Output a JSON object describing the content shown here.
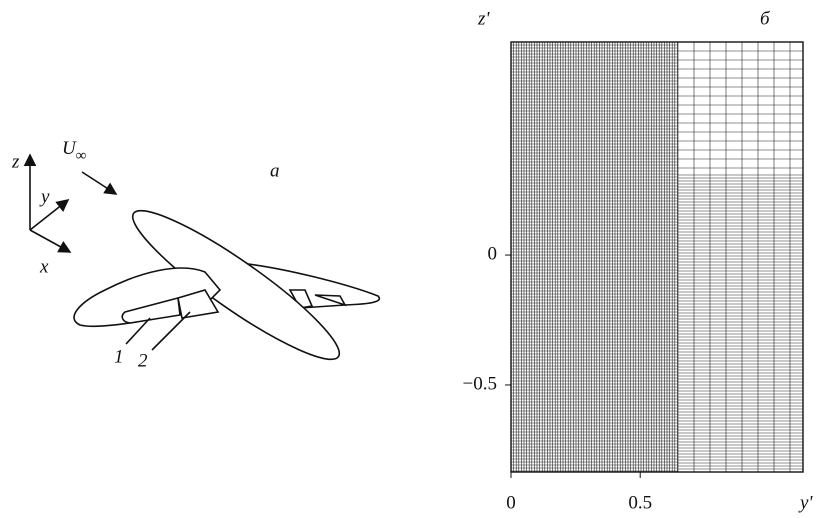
{
  "panel_a": {
    "label": "a",
    "axis_z": "z",
    "axis_y": "y",
    "axis_x": "x",
    "velocity_label": "U",
    "velocity_subscript": "∞",
    "part_1": "1",
    "part_2": "2"
  },
  "chart_data": {
    "type": "mesh",
    "panel_label": "б",
    "xlabel": "y'",
    "ylabel": "z'",
    "xlim": [
      0,
      1.13
    ],
    "ylim": [
      -0.835,
      0.82
    ],
    "xticks": [
      0,
      0.5
    ],
    "yticks": [
      0,
      {
        "value": -0.5,
        "label": "−0.5"
      }
    ]
  }
}
